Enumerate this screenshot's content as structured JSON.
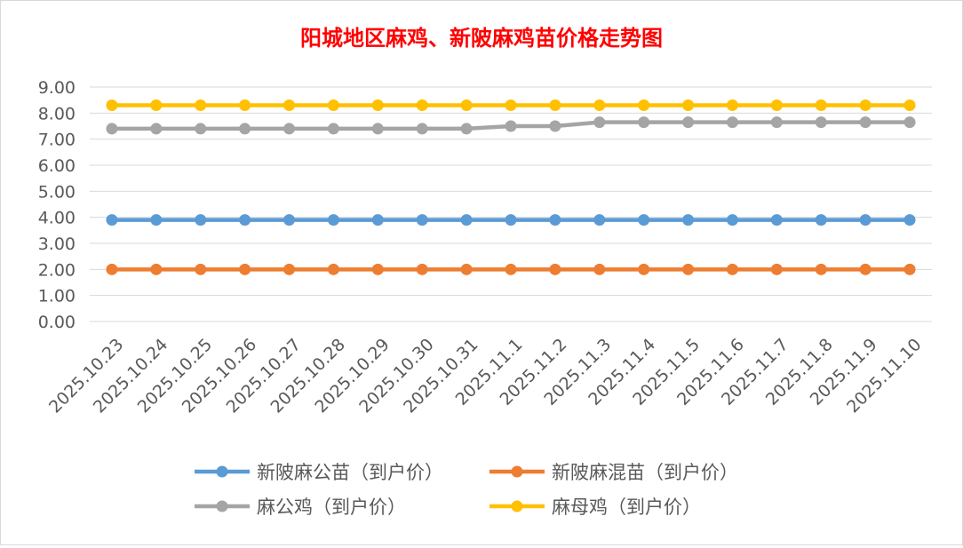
{
  "chart_data": {
    "type": "line",
    "title": "阳城地区麻鸡、新陂麻鸡苗价格走势图",
    "xlabel": "",
    "ylabel": "",
    "ylim": [
      0,
      9
    ],
    "yticks": [
      "0.00",
      "1.00",
      "2.00",
      "3.00",
      "4.00",
      "5.00",
      "6.00",
      "7.00",
      "8.00",
      "9.00"
    ],
    "categories": [
      "2025.10.23",
      "2025.10.24",
      "2025.10.25",
      "2025.10.26",
      "2025.10.27",
      "2025.10.28",
      "2025.10.29",
      "2025.10.30",
      "2025.10.31",
      "2025.11.1",
      "2025.11.2",
      "2025.11.3",
      "2025.11.4",
      "2025.11.5",
      "2025.11.6",
      "2025.11.7",
      "2025.11.8",
      "2025.11.9",
      "2025.11.10"
    ],
    "grid": true,
    "legend_position": "bottom",
    "series": [
      {
        "name": "新陂麻公苗（到户价）",
        "color": "#5b9bd5",
        "values": [
          3.9,
          3.9,
          3.9,
          3.9,
          3.9,
          3.9,
          3.9,
          3.9,
          3.9,
          3.9,
          3.9,
          3.9,
          3.9,
          3.9,
          3.9,
          3.9,
          3.9,
          3.9,
          3.9
        ]
      },
      {
        "name": "新陂麻混苗（到户价）",
        "color": "#ed7d31",
        "values": [
          2.0,
          2.0,
          2.0,
          2.0,
          2.0,
          2.0,
          2.0,
          2.0,
          2.0,
          2.0,
          2.0,
          2.0,
          2.0,
          2.0,
          2.0,
          2.0,
          2.0,
          2.0,
          2.0
        ]
      },
      {
        "name": "麻公鸡（到户价）",
        "color": "#a5a5a5",
        "values": [
          7.4,
          7.4,
          7.4,
          7.4,
          7.4,
          7.4,
          7.4,
          7.4,
          7.4,
          7.5,
          7.5,
          7.65,
          7.65,
          7.65,
          7.65,
          7.65,
          7.65,
          7.65,
          7.65
        ]
      },
      {
        "name": "麻母鸡（到户价）",
        "color": "#ffc000",
        "values": [
          8.3,
          8.3,
          8.3,
          8.3,
          8.3,
          8.3,
          8.3,
          8.3,
          8.3,
          8.3,
          8.3,
          8.3,
          8.3,
          8.3,
          8.3,
          8.3,
          8.3,
          8.3,
          8.3
        ]
      }
    ]
  }
}
